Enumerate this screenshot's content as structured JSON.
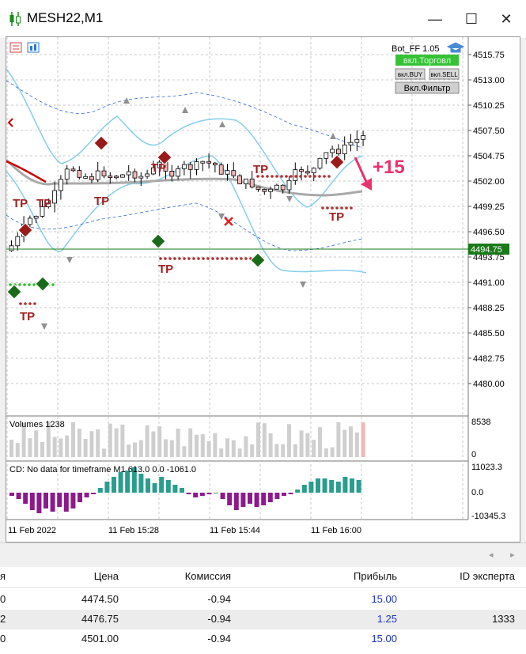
{
  "window": {
    "title": "MESH22,M1",
    "minimize": "—",
    "maximize": "☐",
    "close": "✕"
  },
  "chart": {
    "indicator_name": "Bot_FF 1.05",
    "buttons": {
      "trade": "вкл.Торговл",
      "buy": "вкл.BUY",
      "sell": "вкл.SELL",
      "filter": "Вкл.Фильтр"
    },
    "price_labels": [
      "4515.75",
      "4513.00",
      "4510.25",
      "4507.50",
      "4504.75",
      "4502.00",
      "4499.25",
      "4496.50",
      "4493.75",
      "4491.00",
      "4488.25",
      "4485.50",
      "4482.75",
      "4480.00"
    ],
    "current_price": "4494.75",
    "profit_annotation": "+15",
    "tp_label": "TP",
    "volumes_label": "Volumes 1238",
    "volume_axis": [
      "8538",
      "0"
    ],
    "cd_label": "CD: No data for timeframe M1 613.0 0.0 -1061.0",
    "cd_axis": [
      "11023.3",
      "0.0",
      "-10345.3"
    ],
    "time_labels": [
      "11 Feb 2022",
      "11 Feb 15:28",
      "11 Feb 15:44",
      "11 Feb 16:00"
    ],
    "colors": {
      "bull_candle": "#ffffff",
      "bear_candle": "#f0b8b8",
      "bands": "#87ceeb",
      "ma": "#a9a9a9",
      "price_line": "#0a7a0a",
      "cd_pos": "#2a9d8f",
      "cd_neg": "#8b1a8b",
      "annotation": "#e8336d"
    }
  },
  "table": {
    "headers": [
      "я",
      "Цена",
      "Комиссия",
      "Прибыль",
      "ID эксперта"
    ],
    "rows": [
      {
        "c0": "0",
        "price": "4474.50",
        "commission": "-0.94",
        "profit": "15.00",
        "expert": ""
      },
      {
        "c0": "2",
        "price": "4476.75",
        "commission": "-0.94",
        "profit": "1.25",
        "expert": "1333"
      },
      {
        "c0": "0",
        "price": "4501.00",
        "commission": "-0.94",
        "profit": "15.00",
        "expert": ""
      }
    ]
  }
}
